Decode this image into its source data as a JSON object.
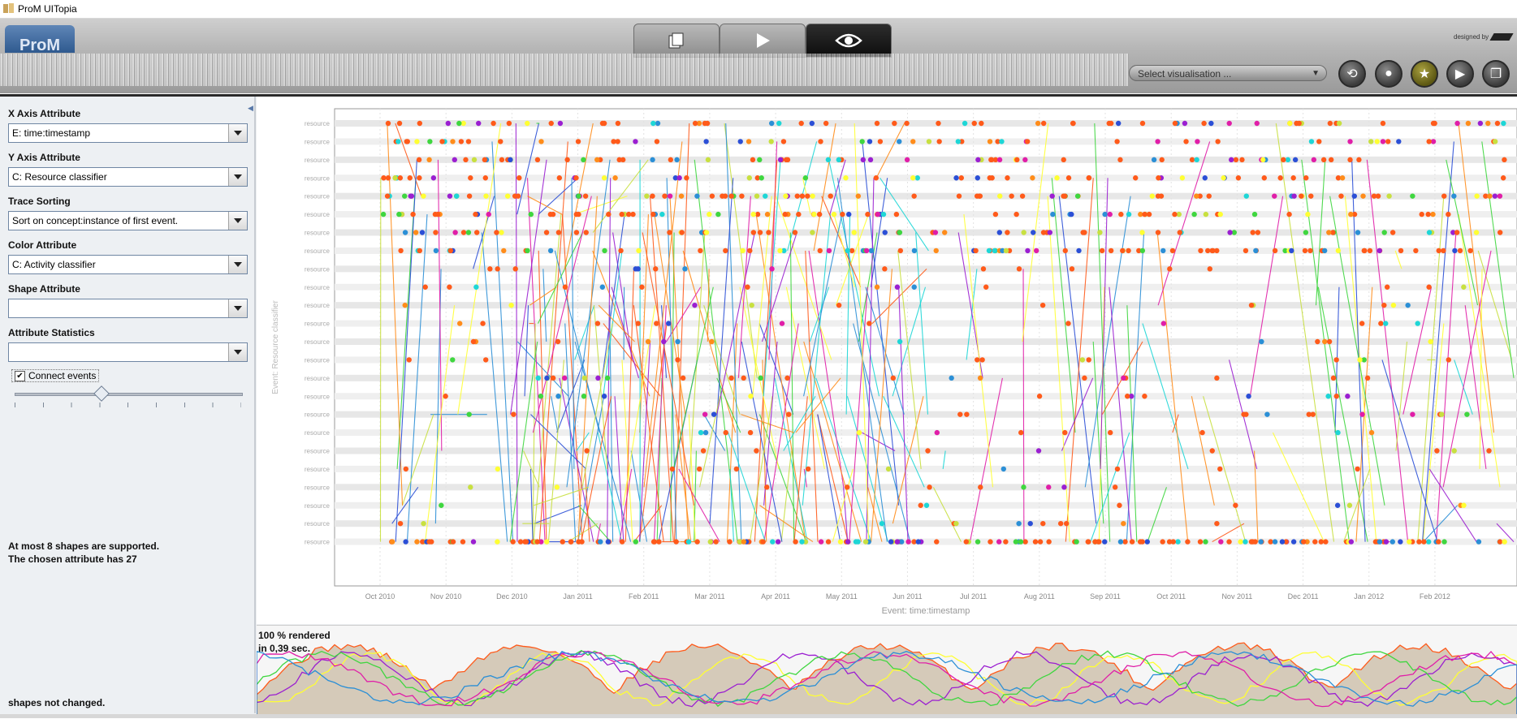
{
  "window": {
    "title": "ProM UITopia",
    "logo_text": "ProM",
    "designed_by": "designed by"
  },
  "header": {
    "select_visualisation": "Select visualisation ..."
  },
  "left_panel": {
    "x_axis_label": "X Axis Attribute",
    "x_axis_value": "E: time:timestamp",
    "y_axis_label": "Y Axis Attribute",
    "y_axis_value": "C: Resource classifier",
    "trace_sorting_label": "Trace Sorting",
    "trace_sorting_value": "Sort on concept:instance of first event.",
    "color_label": "Color Attribute",
    "color_value": "C: Activity classifier",
    "shape_label": "Shape Attribute",
    "shape_value": "",
    "stats_label": "Attribute Statistics",
    "stats_value": "",
    "connect_events_label": "Connect events",
    "connect_events_checked": true,
    "slider_position": 0.38,
    "message_line1": "At most 8 shapes are supported.",
    "message_line2": "The chosen attribute has 27",
    "message_bottom": "shapes not changed."
  },
  "render_status": {
    "line1": "100 % rendered",
    "line2": "in 0,39 sec."
  },
  "chart_data": {
    "type": "scatter",
    "x_ticks": [
      "Oct 2010",
      "Nov 2010",
      "Dec 2010",
      "Jan 2011",
      "Feb 2011",
      "Mar 2011",
      "Apr 2011",
      "May 2011",
      "Jun 2011",
      "Jul 2011",
      "Aug 2011",
      "Sep 2011",
      "Oct 2011",
      "Nov 2011",
      "Dec 2011",
      "Jan 2012",
      "Feb 2012"
    ],
    "xlabel": "Event: time:timestamp",
    "ylabel": "Event: Resource classifier",
    "resource_rows": 24,
    "activity_colors": [
      "#ff5a1a",
      "#ffff33",
      "#9b1fd1",
      "#3fd63f",
      "#e01ea8",
      "#2b8fd6",
      "#c8e040",
      "#1ed6d6",
      "#ff8c1a",
      "#2b4fd6"
    ],
    "grid": true,
    "legend": "none"
  }
}
